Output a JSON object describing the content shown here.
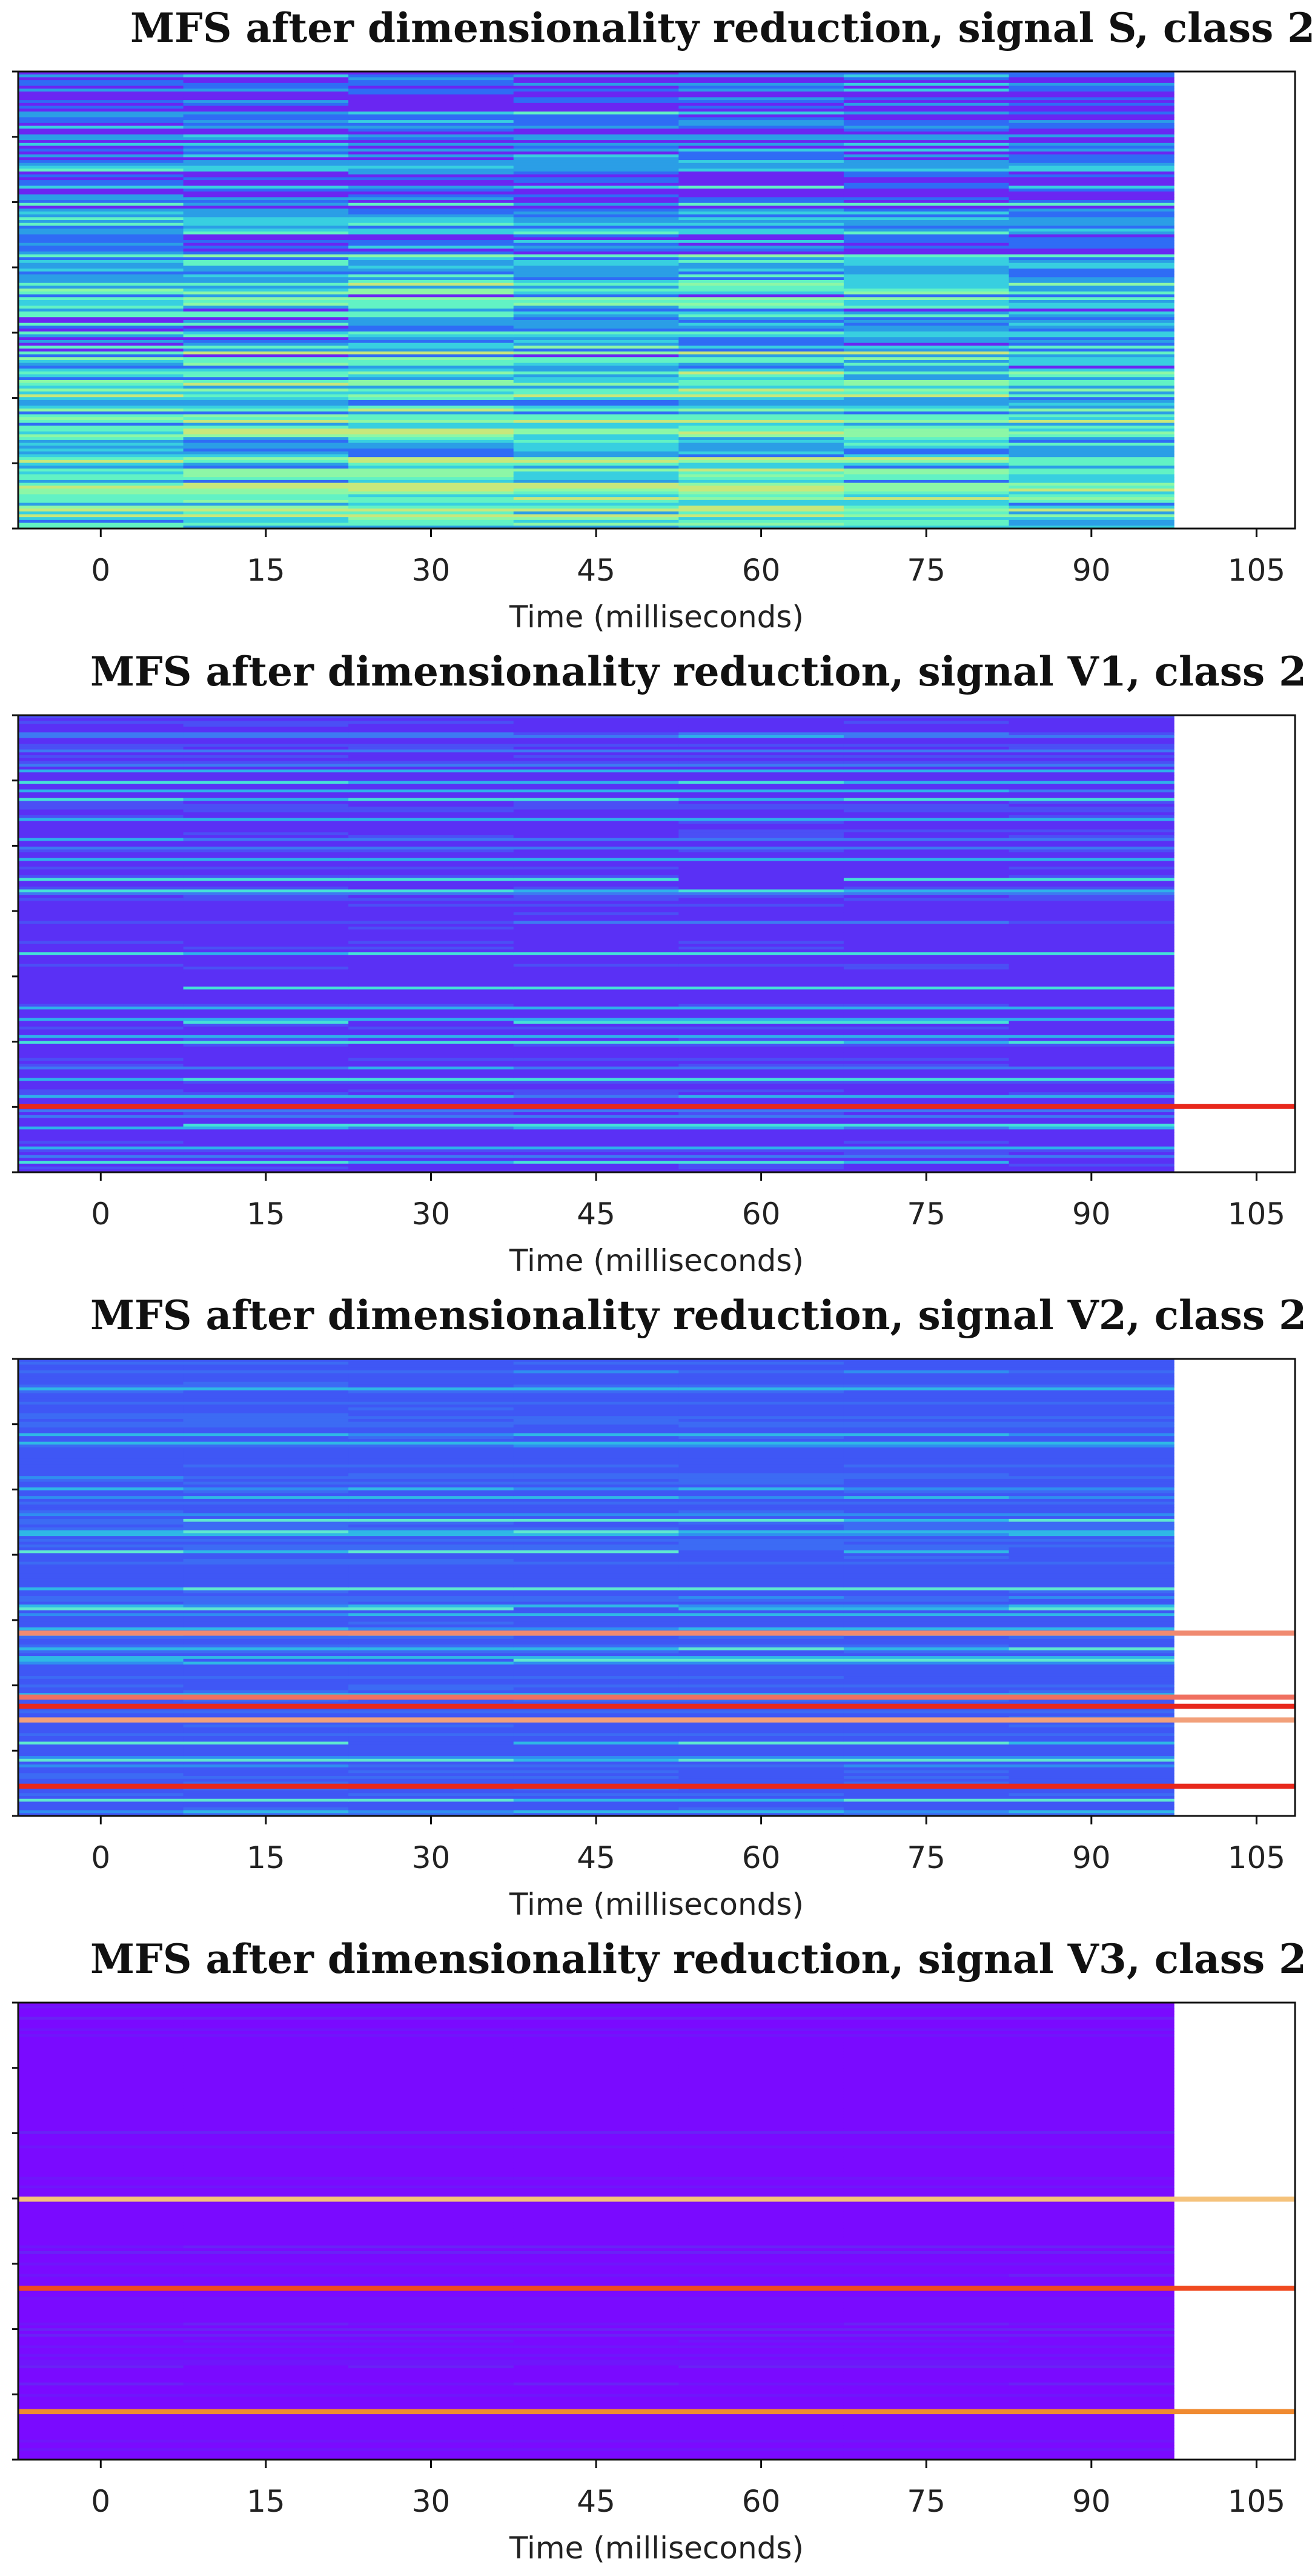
{
  "chart_data": [
    {
      "type": "heatmap",
      "title": "MFS after dimensionality reduction, signal S, class 2",
      "xlabel": "Time (milliseconds)",
      "ylabel": "",
      "x_ticks": [
        0,
        15,
        30,
        45,
        60,
        75,
        90,
        105
      ],
      "x_range": [
        -7.5,
        108.5
      ],
      "time_frames": [
        0,
        15,
        30,
        45,
        60,
        75,
        90
      ],
      "colormap": "rainbow",
      "palette": [
        "#6a26f2",
        "#2f6cf5",
        "#2b9ee6",
        "#38cfe0",
        "#62f2c4",
        "#8df7a6",
        "#c7e87c"
      ],
      "rows": 160,
      "value_range": [
        0.0,
        1.0
      ],
      "row_profile": [
        0.18,
        0.32,
        0.45,
        0.6
      ],
      "frame_strength": [
        0.95,
        1.0,
        1.05,
        1.0,
        1.05,
        0.95,
        0.9
      ],
      "hot_bands": []
    },
    {
      "type": "heatmap",
      "title": "MFS after dimensionality reduction, signal V1, class  2",
      "xlabel": "Time (milliseconds)",
      "ylabel": "",
      "x_ticks": [
        0,
        15,
        30,
        45,
        60,
        75,
        90,
        105
      ],
      "x_range": [
        -7.5,
        108.5
      ],
      "time_frames": [
        0,
        15,
        30,
        45,
        60,
        75,
        90
      ],
      "colormap": "rainbow",
      "palette": [
        "#5a30f5",
        "#4b4ff5",
        "#3d7af2",
        "#2fb0ea",
        "#45e0d8"
      ],
      "rows": 160,
      "value_range": [
        0.0,
        1.0
      ],
      "hot_bands": [
        {
          "row_fraction": 0.856,
          "color": "#e8281c"
        }
      ],
      "bright_bands": [
        0.18,
        0.36,
        0.52,
        0.6,
        0.67,
        0.72,
        0.8,
        0.9,
        0.98
      ]
    },
    {
      "type": "heatmap",
      "title": "MFS after dimensionality reduction, signal V2, class 2",
      "xlabel": "Time (milliseconds)",
      "ylabel": "",
      "x_ticks": [
        0,
        15,
        30,
        45,
        60,
        75,
        90,
        105
      ],
      "x_range": [
        -7.5,
        108.5
      ],
      "time_frames": [
        0,
        15,
        30,
        45,
        60,
        75,
        90
      ],
      "colormap": "rainbow",
      "palette": [
        "#3f57f5",
        "#3c6bf4",
        "#2f8ef0",
        "#2fb8e6",
        "#5fe8d0"
      ],
      "rows": 160,
      "value_range": [
        0.0,
        1.0
      ],
      "hot_bands": [
        {
          "row_fraction": 0.74,
          "color": "#f07060"
        },
        {
          "row_fraction": 0.76,
          "color": "#e8281c"
        },
        {
          "row_fraction": 0.79,
          "color": "#f2a07a"
        },
        {
          "row_fraction": 0.935,
          "color": "#e8281c"
        },
        {
          "row_fraction": 0.6,
          "color": "#f08a70"
        }
      ],
      "bright_bands": [
        0.35,
        0.42,
        0.5,
        0.55,
        0.66,
        0.84,
        0.88,
        0.97
      ]
    },
    {
      "type": "heatmap",
      "title": "MFS after dimensionality reduction, signal V3, class  2",
      "xlabel": "Time (milliseconds)",
      "ylabel": "",
      "x_ticks": [
        0,
        15,
        30,
        45,
        60,
        75,
        90,
        105
      ],
      "x_range": [
        -7.5,
        108.5
      ],
      "time_frames": [
        0,
        15,
        30,
        45,
        60,
        75,
        90
      ],
      "colormap": "rainbow",
      "palette": [
        "#7a0aff",
        "#6f16fb",
        "#6a22f6"
      ],
      "rows": 160,
      "value_range": [
        0.0,
        1.0
      ],
      "hot_bands": [
        {
          "row_fraction": 0.43,
          "color": "#f5c27a"
        },
        {
          "row_fraction": 0.625,
          "color": "#f04a20"
        },
        {
          "row_fraction": 0.895,
          "color": "#f08a30"
        }
      ],
      "bright_bands": [
        0.72,
        0.8
      ]
    }
  ]
}
